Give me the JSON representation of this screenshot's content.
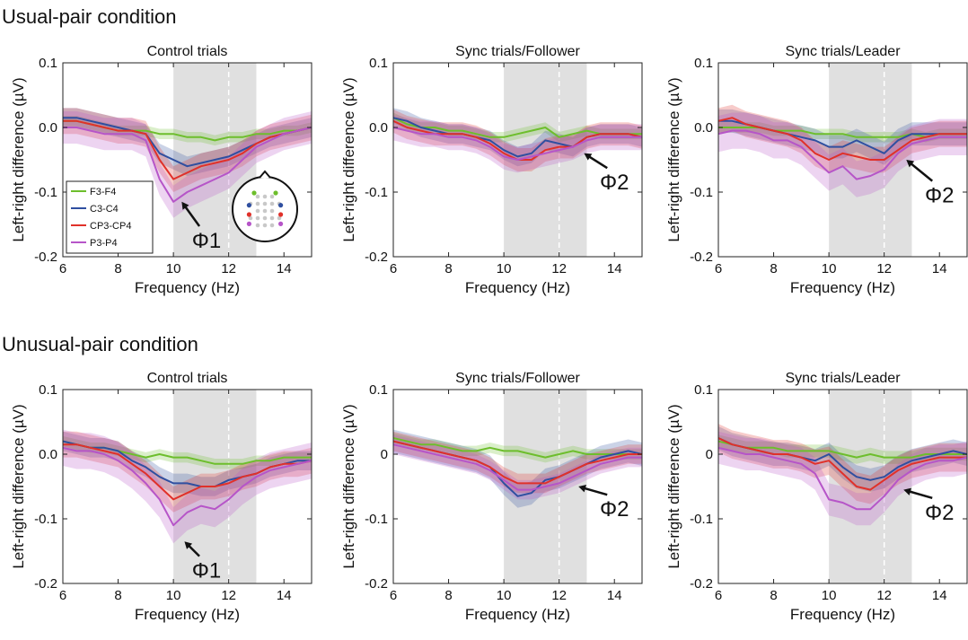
{
  "headings": [
    "Usual-pair condition",
    "Unusual-pair condition"
  ],
  "chart_data": [
    {
      "type": "line",
      "title": "Control trials",
      "xlabel": "Frequency (Hz)",
      "ylabel": "Left-right difference (µV)",
      "x": [
        6,
        6.5,
        7,
        7.5,
        8,
        8.5,
        9,
        9.5,
        10,
        10.5,
        11,
        11.5,
        12,
        12.5,
        13,
        13.5,
        14,
        14.5,
        15
      ],
      "xlim": [
        6,
        15
      ],
      "xticks": [
        6,
        8,
        10,
        12,
        14
      ],
      "ylim": [
        -0.2,
        0.1
      ],
      "yticks": [
        -0.2,
        -0.1,
        {
          "value": 0,
          "label": "0.0"
        },
        0.1
      ],
      "shaded_range": [
        10,
        13
      ],
      "vline": 12,
      "legend": "lower left",
      "series": [
        {
          "name": "F3-F4",
          "color": "#6dbe2c",
          "error": 0.008,
          "values": [
            0.01,
            0.01,
            0.005,
            0,
            -0.005,
            -0.005,
            -0.005,
            -0.01,
            -0.01,
            -0.015,
            -0.015,
            -0.02,
            -0.015,
            -0.015,
            -0.01,
            -0.01,
            -0.005,
            -0.005,
            0
          ]
        },
        {
          "name": "C3-C4",
          "color": "#2f4fa0",
          "error": 0.015,
          "values": [
            0.015,
            0.015,
            0.01,
            0.005,
            0,
            -0.005,
            -0.01,
            -0.04,
            -0.05,
            -0.06,
            -0.055,
            -0.05,
            -0.045,
            -0.035,
            -0.025,
            -0.015,
            -0.01,
            -0.005,
            0
          ]
        },
        {
          "name": "CP3-CP4",
          "color": "#e0312a",
          "error": 0.02,
          "values": [
            0.01,
            0.01,
            0.005,
            0,
            -0.005,
            -0.005,
            -0.01,
            -0.05,
            -0.08,
            -0.07,
            -0.06,
            -0.055,
            -0.05,
            -0.04,
            -0.025,
            -0.015,
            -0.01,
            -0.005,
            0
          ]
        },
        {
          "name": "P3-P4",
          "color": "#b655c8",
          "error": 0.025,
          "values": [
            0,
            0,
            -0.005,
            -0.01,
            -0.01,
            -0.01,
            -0.02,
            -0.08,
            -0.115,
            -0.1,
            -0.09,
            -0.08,
            -0.07,
            -0.05,
            -0.03,
            -0.02,
            -0.01,
            -0.005,
            0
          ]
        }
      ],
      "annotations": [
        {
          "text": "Φ1",
          "xy": [
            10.3,
            -0.115
          ],
          "xytext": [
            11.2,
            -0.175
          ]
        }
      ]
    },
    {
      "type": "line",
      "title": "Sync trials/Follower",
      "xlabel": "Frequency (Hz)",
      "ylabel": "Left-right difference (µV)",
      "x": [
        6,
        6.5,
        7,
        7.5,
        8,
        8.5,
        9,
        9.5,
        10,
        10.5,
        11,
        11.5,
        12,
        12.5,
        13,
        13.5,
        14,
        14.5,
        15
      ],
      "xlim": [
        6,
        15
      ],
      "xticks": [
        6,
        8,
        10,
        12,
        14
      ],
      "ylim": [
        -0.2,
        0.1
      ],
      "yticks": [
        -0.2,
        -0.1,
        {
          "value": 0,
          "label": "0.0"
        },
        0.1
      ],
      "shaded_range": [
        10,
        13
      ],
      "vline": 12,
      "series": [
        {
          "color": "#6dbe2c",
          "error": 0.008,
          "values": [
            0.015,
            0.005,
            0,
            0,
            -0.005,
            -0.005,
            -0.01,
            -0.015,
            -0.015,
            -0.01,
            -0.005,
            0,
            -0.015,
            -0.01,
            -0.005,
            -0.01,
            -0.01,
            -0.01,
            -0.01
          ]
        },
        {
          "color": "#2f4fa0",
          "error": 0.015,
          "values": [
            0.015,
            0.01,
            0,
            -0.005,
            -0.01,
            -0.01,
            -0.015,
            -0.02,
            -0.035,
            -0.045,
            -0.04,
            -0.02,
            -0.025,
            -0.03,
            -0.015,
            -0.01,
            -0.01,
            -0.01,
            -0.015
          ]
        },
        {
          "color": "#e0312a",
          "error": 0.018,
          "values": [
            0.01,
            0,
            -0.005,
            -0.01,
            -0.01,
            -0.01,
            -0.015,
            -0.025,
            -0.04,
            -0.05,
            -0.05,
            -0.035,
            -0.03,
            -0.03,
            -0.015,
            -0.01,
            -0.01,
            -0.01,
            -0.015
          ]
        },
        {
          "color": "#b655c8",
          "error": 0.02,
          "values": [
            0,
            -0.005,
            -0.01,
            -0.01,
            -0.015,
            -0.015,
            -0.02,
            -0.03,
            -0.045,
            -0.05,
            -0.045,
            -0.04,
            -0.035,
            -0.03,
            -0.02,
            -0.015,
            -0.015,
            -0.015,
            -0.015
          ]
        }
      ],
      "annotations": [
        {
          "text": "Φ2",
          "xy": [
            12.9,
            -0.04
          ],
          "xytext": [
            14,
            -0.085
          ]
        }
      ]
    },
    {
      "type": "line",
      "title": "Sync trials/Leader",
      "xlabel": "Frequency (Hz)",
      "ylabel": "Left-right difference (µV)",
      "x": [
        6,
        6.5,
        7,
        7.5,
        8,
        8.5,
        9,
        9.5,
        10,
        10.5,
        11,
        11.5,
        12,
        12.5,
        13,
        13.5,
        14,
        14.5,
        15
      ],
      "xlim": [
        6,
        15
      ],
      "xticks": [
        6,
        8,
        10,
        12,
        14
      ],
      "ylim": [
        -0.2,
        0.1
      ],
      "yticks": [
        -0.2,
        -0.1,
        {
          "value": 0,
          "label": "0.0"
        },
        0.1
      ],
      "shaded_range": [
        10,
        13
      ],
      "vline": 12,
      "series": [
        {
          "color": "#6dbe2c",
          "error": 0.008,
          "values": [
            0,
            0,
            0,
            0,
            -0.005,
            -0.005,
            -0.005,
            -0.01,
            -0.01,
            -0.01,
            -0.015,
            -0.015,
            -0.015,
            -0.015,
            -0.01,
            -0.015,
            -0.01,
            -0.01,
            -0.01
          ]
        },
        {
          "color": "#2f4fa0",
          "error": 0.018,
          "values": [
            0.01,
            0.01,
            0.005,
            0,
            -0.005,
            -0.01,
            -0.015,
            -0.02,
            -0.03,
            -0.03,
            -0.02,
            -0.03,
            -0.04,
            -0.02,
            -0.01,
            -0.01,
            -0.01,
            -0.01,
            -0.01
          ]
        },
        {
          "color": "#e0312a",
          "error": 0.02,
          "values": [
            0.01,
            0.015,
            0.005,
            0,
            -0.005,
            -0.01,
            -0.02,
            -0.04,
            -0.05,
            -0.04,
            -0.045,
            -0.05,
            -0.05,
            -0.035,
            -0.02,
            -0.015,
            -0.01,
            -0.01,
            -0.01
          ]
        },
        {
          "color": "#b655c8",
          "error": 0.028,
          "values": [
            -0.01,
            -0.005,
            -0.005,
            -0.01,
            -0.02,
            -0.02,
            -0.03,
            -0.05,
            -0.07,
            -0.06,
            -0.08,
            -0.075,
            -0.065,
            -0.04,
            -0.025,
            -0.02,
            -0.015,
            -0.015,
            -0.015
          ]
        }
      ],
      "annotations": [
        {
          "text": "Φ2",
          "xy": [
            12.8,
            -0.05
          ],
          "xytext": [
            14,
            -0.105
          ]
        }
      ]
    },
    {
      "type": "line",
      "title": "Control trials",
      "xlabel": "Frequency (Hz)",
      "ylabel": "Left-right difference (µV)",
      "x": [
        6,
        6.5,
        7,
        7.5,
        8,
        8.5,
        9,
        9.5,
        10,
        10.5,
        11,
        11.5,
        12,
        12.5,
        13,
        13.5,
        14,
        14.5,
        15
      ],
      "xlim": [
        6,
        15
      ],
      "xticks": [
        6,
        8,
        10,
        12,
        14
      ],
      "ylim": [
        -0.2,
        0.1
      ],
      "yticks": [
        -0.2,
        -0.1,
        {
          "value": 0,
          "label": "0.0"
        },
        0.1
      ],
      "shaded_range": [
        10,
        13
      ],
      "vline": 12,
      "series": [
        {
          "color": "#6dbe2c",
          "error": 0.008,
          "values": [
            0.02,
            0.015,
            0.01,
            0.01,
            0.005,
            0,
            -0.005,
            0,
            -0.005,
            -0.005,
            -0.01,
            -0.015,
            -0.015,
            -0.015,
            -0.01,
            -0.01,
            -0.005,
            -0.005,
            -0.005
          ]
        },
        {
          "color": "#2f4fa0",
          "error": 0.015,
          "values": [
            0.02,
            0.015,
            0.01,
            0.01,
            0.005,
            -0.01,
            -0.02,
            -0.035,
            -0.045,
            -0.045,
            -0.05,
            -0.05,
            -0.04,
            -0.035,
            -0.03,
            -0.02,
            -0.015,
            -0.01,
            -0.01
          ]
        },
        {
          "color": "#e0312a",
          "error": 0.02,
          "values": [
            0.015,
            0.015,
            0.01,
            0.005,
            0,
            -0.015,
            -0.03,
            -0.05,
            -0.07,
            -0.06,
            -0.05,
            -0.05,
            -0.045,
            -0.035,
            -0.03,
            -0.02,
            -0.015,
            -0.015,
            -0.01
          ]
        },
        {
          "color": "#b655c8",
          "error": 0.028,
          "values": [
            0.01,
            0.005,
            0.005,
            0,
            -0.01,
            -0.025,
            -0.045,
            -0.07,
            -0.11,
            -0.09,
            -0.08,
            -0.085,
            -0.07,
            -0.05,
            -0.035,
            -0.025,
            -0.02,
            -0.015,
            -0.01
          ]
        }
      ],
      "annotations": [
        {
          "text": "Φ1",
          "xy": [
            10.4,
            -0.135
          ],
          "xytext": [
            11.2,
            -0.18
          ]
        }
      ]
    },
    {
      "type": "line",
      "title": "Sync trials/Follower",
      "xlabel": "Frequency (Hz)",
      "ylabel": "Left-right difference (µV)",
      "x": [
        6,
        6.5,
        7,
        7.5,
        8,
        8.5,
        9,
        9.5,
        10,
        10.5,
        11,
        11.5,
        12,
        12.5,
        13,
        13.5,
        14,
        14.5,
        15
      ],
      "xlim": [
        6,
        15
      ],
      "xticks": [
        6,
        8,
        10,
        12,
        14
      ],
      "ylim": [
        -0.2,
        0.1
      ],
      "yticks": [
        -0.2,
        -0.1,
        0,
        0.1
      ],
      "shaded_range": [
        10,
        13
      ],
      "vline": 12,
      "series": [
        {
          "color": "#6dbe2c",
          "error": 0.008,
          "values": [
            0.025,
            0.02,
            0.015,
            0.015,
            0.01,
            0.005,
            0.005,
            0.01,
            0.005,
            0.005,
            0,
            -0.005,
            0,
            0.005,
            0,
            0,
            0,
            0,
            0
          ]
        },
        {
          "color": "#2f4fa0",
          "error": 0.018,
          "values": [
            0.02,
            0.015,
            0.01,
            0.005,
            0,
            -0.005,
            -0.01,
            -0.02,
            -0.045,
            -0.065,
            -0.06,
            -0.04,
            -0.035,
            -0.025,
            -0.015,
            -0.005,
            0,
            0.005,
            0
          ]
        },
        {
          "color": "#e0312a",
          "error": 0.015,
          "values": [
            0.02,
            0.015,
            0.01,
            0.005,
            0,
            -0.005,
            -0.01,
            -0.02,
            -0.035,
            -0.045,
            -0.045,
            -0.045,
            -0.035,
            -0.025,
            -0.015,
            -0.01,
            -0.005,
            0,
            0
          ]
        },
        {
          "color": "#b655c8",
          "error": 0.015,
          "values": [
            0.015,
            0.01,
            0.005,
            0,
            -0.005,
            -0.01,
            -0.015,
            -0.025,
            -0.04,
            -0.055,
            -0.055,
            -0.05,
            -0.045,
            -0.035,
            -0.025,
            -0.015,
            -0.01,
            -0.005,
            -0.005
          ]
        }
      ],
      "annotations": [
        {
          "text": "Φ2",
          "xy": [
            12.7,
            -0.05
          ],
          "xytext": [
            14,
            -0.085
          ]
        }
      ]
    },
    {
      "type": "line",
      "title": "Sync trials/Leader",
      "xlabel": "Frequency (Hz)",
      "ylabel": "Left-right difference (µV)",
      "x": [
        6,
        6.5,
        7,
        7.5,
        8,
        8.5,
        9,
        9.5,
        10,
        10.5,
        11,
        11.5,
        12,
        12.5,
        13,
        13.5,
        14,
        14.5,
        15
      ],
      "xlim": [
        6,
        15
      ],
      "xticks": [
        6,
        8,
        10,
        12,
        14
      ],
      "ylim": [
        -0.2,
        0.1
      ],
      "yticks": [
        -0.2,
        -0.1,
        0,
        0.1
      ],
      "shaded_range": [
        10,
        13
      ],
      "vline": 12,
      "series": [
        {
          "color": "#6dbe2c",
          "error": 0.01,
          "values": [
            0.02,
            0.015,
            0.01,
            0.01,
            0.01,
            0.005,
            0.005,
            0.005,
            0.005,
            0,
            -0.005,
            0,
            -0.005,
            -0.005,
            -0.005,
            0,
            0,
            0,
            0
          ]
        },
        {
          "color": "#2f4fa0",
          "error": 0.018,
          "values": [
            0.025,
            0.015,
            0.01,
            0.005,
            0,
            0,
            -0.005,
            -0.01,
            0,
            -0.02,
            -0.035,
            -0.04,
            -0.035,
            -0.02,
            -0.01,
            -0.005,
            0,
            0.005,
            0
          ]
        },
        {
          "color": "#e0312a",
          "error": 0.022,
          "values": [
            0.025,
            0.015,
            0.01,
            0.005,
            0,
            0,
            -0.005,
            -0.015,
            -0.01,
            -0.03,
            -0.05,
            -0.055,
            -0.04,
            -0.025,
            -0.015,
            -0.01,
            -0.005,
            -0.005,
            -0.005
          ]
        },
        {
          "color": "#b655c8",
          "error": 0.025,
          "values": [
            0.01,
            0.005,
            0,
            0,
            -0.005,
            -0.01,
            -0.015,
            -0.03,
            -0.07,
            -0.075,
            -0.085,
            -0.085,
            -0.065,
            -0.04,
            -0.025,
            -0.015,
            -0.01,
            -0.01,
            -0.005
          ]
        }
      ],
      "annotations": [
        {
          "text": "Φ2",
          "xy": [
            12.7,
            -0.055
          ],
          "xytext": [
            14,
            -0.09
          ]
        }
      ]
    }
  ]
}
